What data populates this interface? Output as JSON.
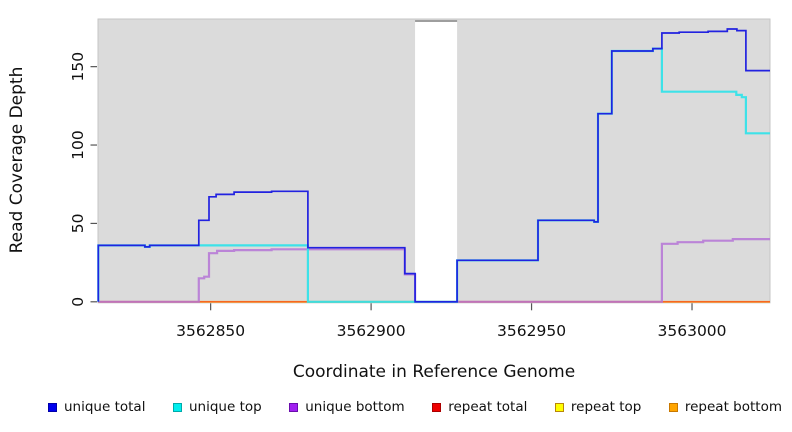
{
  "chart_data": {
    "type": "line",
    "subtype": "step-coverage",
    "title": "",
    "xlabel": "Coordinate in Reference Genome",
    "ylabel": "Read Coverage Depth",
    "xlim": [
      3562814.9,
      3563024.3
    ],
    "ylim": [
      0,
      180.4
    ],
    "grid": false,
    "legend_position": "bottom",
    "panel_background": "#DBDBDB",
    "panel_border_color": "#C6C6C6",
    "gap_region": {
      "x_start": 3562913.7,
      "x_end": 3562926.8,
      "fill": "#FFFFFF",
      "top_line_color": "#8F8F8F"
    },
    "x_ticks": [
      {
        "value": 3562850,
        "label": "3562850"
      },
      {
        "value": 3562900,
        "label": "3562900"
      },
      {
        "value": 3562950,
        "label": "3562950"
      },
      {
        "value": 3563000,
        "label": "3563000"
      }
    ],
    "y_ticks": [
      {
        "value": 0,
        "label": "0"
      },
      {
        "value": 50,
        "label": "50"
      },
      {
        "value": 100,
        "label": "100"
      },
      {
        "value": 150,
        "label": "150"
      }
    ],
    "tick_color": "#555555",
    "series": [
      {
        "name": "repeat top",
        "color": "#FFE800",
        "width": 1.2,
        "opacity": 1,
        "points": [
          [
            3562815,
            0
          ]
        ]
      },
      {
        "name": "repeat bottom",
        "color": "#FFA020",
        "width": 1.8,
        "opacity": 1,
        "points": [
          [
            3562815,
            0
          ]
        ]
      },
      {
        "name": "repeat total",
        "color": "#EE2222",
        "width": 1.0,
        "opacity": 0.6,
        "points": [
          [
            3562815,
            0
          ]
        ]
      },
      {
        "name": "unique bottom",
        "color": "#B574D6",
        "width": 2.2,
        "opacity": 0.85,
        "points": [
          [
            3562815,
            0
          ],
          [
            3562846.3,
            15
          ],
          [
            3562848,
            16
          ],
          [
            3562849.5,
            31
          ],
          [
            3562852,
            32.5
          ],
          [
            3562857.3,
            33
          ],
          [
            3562869,
            33.5
          ],
          [
            3562910.5,
            17.5
          ],
          [
            3562913.7,
            0
          ],
          [
            3562990.6,
            37
          ],
          [
            3562995.5,
            38
          ],
          [
            3563003.5,
            39
          ],
          [
            3563012.7,
            40
          ]
        ]
      },
      {
        "name": "unique top",
        "color": "#35E3E9",
        "width": 2.2,
        "opacity": 0.95,
        "points": [
          [
            3562815,
            36
          ],
          [
            3562829.5,
            35
          ],
          [
            3562831,
            36
          ],
          [
            3562880.3,
            0
          ],
          [
            3562926.8,
            26.5
          ],
          [
            3562952,
            52
          ],
          [
            3562969.5,
            51
          ],
          [
            3562970.7,
            120
          ],
          [
            3562975,
            160
          ],
          [
            3562987.8,
            161.5
          ],
          [
            3562990.6,
            134
          ],
          [
            3563013.8,
            132
          ],
          [
            3563015.5,
            130.5
          ],
          [
            3563016.8,
            107.5
          ]
        ]
      },
      {
        "name": "unique total",
        "color": "#2222E0",
        "width": 1.7,
        "opacity": 1,
        "points": [
          [
            3562815,
            36
          ],
          [
            3562829.5,
            35
          ],
          [
            3562831,
            36
          ],
          [
            3562846.3,
            52
          ],
          [
            3562849.5,
            67
          ],
          [
            3562851.7,
            68.5
          ],
          [
            3562857.3,
            70
          ],
          [
            3562869,
            70.5
          ],
          [
            3562880.3,
            34.5
          ],
          [
            3562910.5,
            18
          ],
          [
            3562913.7,
            0
          ],
          [
            3562926.8,
            26.5
          ],
          [
            3562952,
            52
          ],
          [
            3562969.5,
            51
          ],
          [
            3562970.7,
            120
          ],
          [
            3562975,
            160
          ],
          [
            3562987.8,
            161.5
          ],
          [
            3562990.6,
            171.5
          ],
          [
            3562996,
            172
          ],
          [
            3563005,
            172.5
          ],
          [
            3563011,
            174
          ],
          [
            3563014,
            173
          ],
          [
            3563016.8,
            147.5
          ]
        ]
      }
    ]
  },
  "axes": {
    "x_label": "Coordinate in Reference Genome",
    "y_label": "Read Coverage Depth"
  },
  "legend": {
    "items": [
      {
        "id": "unique-total",
        "label": "unique total",
        "fill": "#0000EE",
        "border": "#0000AA"
      },
      {
        "id": "unique-top",
        "label": "unique top",
        "fill": "#00EEEE",
        "border": "#00AAAA"
      },
      {
        "id": "unique-bottom",
        "label": "unique bottom",
        "fill": "#A020F0",
        "border": "#6A0DAD"
      },
      {
        "id": "repeat-total",
        "label": "repeat total",
        "fill": "#EE0000",
        "border": "#AA0000"
      },
      {
        "id": "repeat-top",
        "label": "repeat top",
        "fill": "#FFFF00",
        "border": "#B8860B"
      },
      {
        "id": "repeat-bottom",
        "label": "repeat bottom",
        "fill": "#FFA500",
        "border": "#C87800"
      }
    ]
  }
}
